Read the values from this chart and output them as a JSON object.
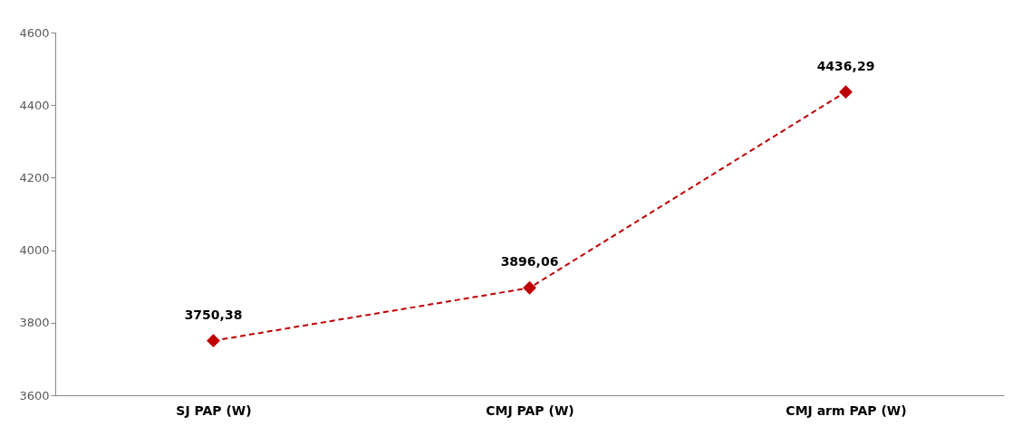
{
  "chart_data": {
    "type": "line",
    "categories": [
      "SJ PAP (W)",
      "CMJ  PAP  (W)",
      "CMJ arm PAP  (W)"
    ],
    "series": [
      {
        "color": "#c00000",
        "values": [
          3750.38,
          3896.06,
          4436.29
        ],
        "value_labels": [
          "3750,38",
          "3896,06",
          "4436,29"
        ]
      }
    ],
    "ylim": [
      3600,
      4600
    ],
    "yticks": [
      3600,
      3800,
      4000,
      4200,
      4400,
      4600
    ],
    "grid": false,
    "marker": "diamond",
    "line_style": "dashed"
  }
}
